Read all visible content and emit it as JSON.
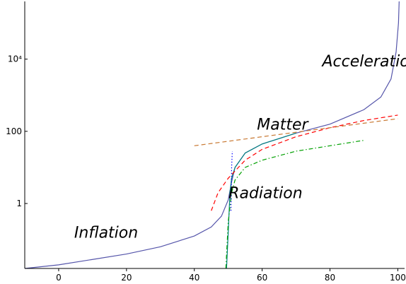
{
  "chart_data": {
    "type": "line",
    "title": "",
    "xlabel": "",
    "ylabel": "",
    "x_axis": {
      "range": [
        -10,
        102
      ],
      "ticks": [
        0,
        20,
        40,
        60,
        80,
        100
      ],
      "tick_labels": [
        "0",
        "20",
        "40",
        "60",
        "80",
        "100"
      ]
    },
    "y_axis": {
      "scale": "log",
      "range_log10": [
        -1.8,
        5.6
      ],
      "ticks_log10": [
        0,
        2,
        4
      ],
      "tick_labels": [
        "1",
        "100",
        "10⁴"
      ]
    },
    "annotations": [
      {
        "text": "Inflation",
        "x": 14,
        "y_log10": -0.95
      },
      {
        "text": "Radiation",
        "x": 61,
        "y_log10": 0.15
      },
      {
        "text": "Matter",
        "x": 66,
        "y_log10": 2.05
      },
      {
        "text": "Acceleration",
        "x": 92,
        "y_log10": 3.8
      }
    ],
    "series": [
      {
        "style": "solid",
        "color": "#5555aa",
        "points": [
          [
            -10,
            -1.8
          ],
          [
            0,
            -1.7
          ],
          [
            10,
            -1.55
          ],
          [
            20,
            -1.4
          ],
          [
            30,
            -1.2
          ],
          [
            40,
            -0.9
          ],
          [
            45,
            -0.65
          ],
          [
            48,
            -0.35
          ],
          [
            50,
            0.1
          ],
          [
            51,
            0.6
          ],
          [
            52,
            1.0
          ],
          [
            55,
            1.4
          ],
          [
            60,
            1.65
          ],
          [
            70,
            1.95
          ],
          [
            80,
            2.2
          ],
          [
            90,
            2.6
          ],
          [
            95,
            2.95
          ],
          [
            98,
            3.45
          ],
          [
            99.5,
            4.2
          ],
          [
            100.2,
            5.0
          ],
          [
            100.4,
            5.6
          ]
        ]
      },
      {
        "style": "solid",
        "color": "#008080",
        "points": [
          [
            49.5,
            -1.8
          ],
          [
            50,
            -0.8
          ],
          [
            50.5,
            0.3
          ],
          [
            51,
            0.7
          ],
          [
            52,
            1.0
          ],
          [
            55,
            1.4
          ],
          [
            60,
            1.65
          ],
          [
            70,
            1.95
          ]
        ]
      },
      {
        "style": "dashed",
        "color": "#ff0000",
        "points": [
          [
            45,
            -0.2
          ],
          [
            47,
            0.3
          ],
          [
            50,
            0.7
          ],
          [
            55,
            1.2
          ],
          [
            60,
            1.5
          ],
          [
            70,
            1.85
          ],
          [
            80,
            2.1
          ],
          [
            90,
            2.3
          ],
          [
            100,
            2.45
          ]
        ]
      },
      {
        "style": "dashed",
        "color": "#c87832",
        "points": [
          [
            40,
            1.6
          ],
          [
            60,
            1.85
          ],
          [
            80,
            2.1
          ],
          [
            100,
            2.35
          ]
        ]
      },
      {
        "style": "dash-dot",
        "color": "#00a000",
        "points": [
          [
            49.3,
            -1.8
          ],
          [
            50,
            -0.5
          ],
          [
            51,
            0.3
          ],
          [
            52,
            0.65
          ],
          [
            55,
            1.0
          ],
          [
            60,
            1.2
          ],
          [
            70,
            1.45
          ],
          [
            80,
            1.6
          ],
          [
            90,
            1.75
          ]
        ]
      },
      {
        "style": "dotted",
        "color": "#0000ff",
        "points": [
          [
            50.8,
            -0.2
          ],
          [
            51,
            1.0
          ],
          [
            51.2,
            1.45
          ]
        ]
      }
    ]
  }
}
